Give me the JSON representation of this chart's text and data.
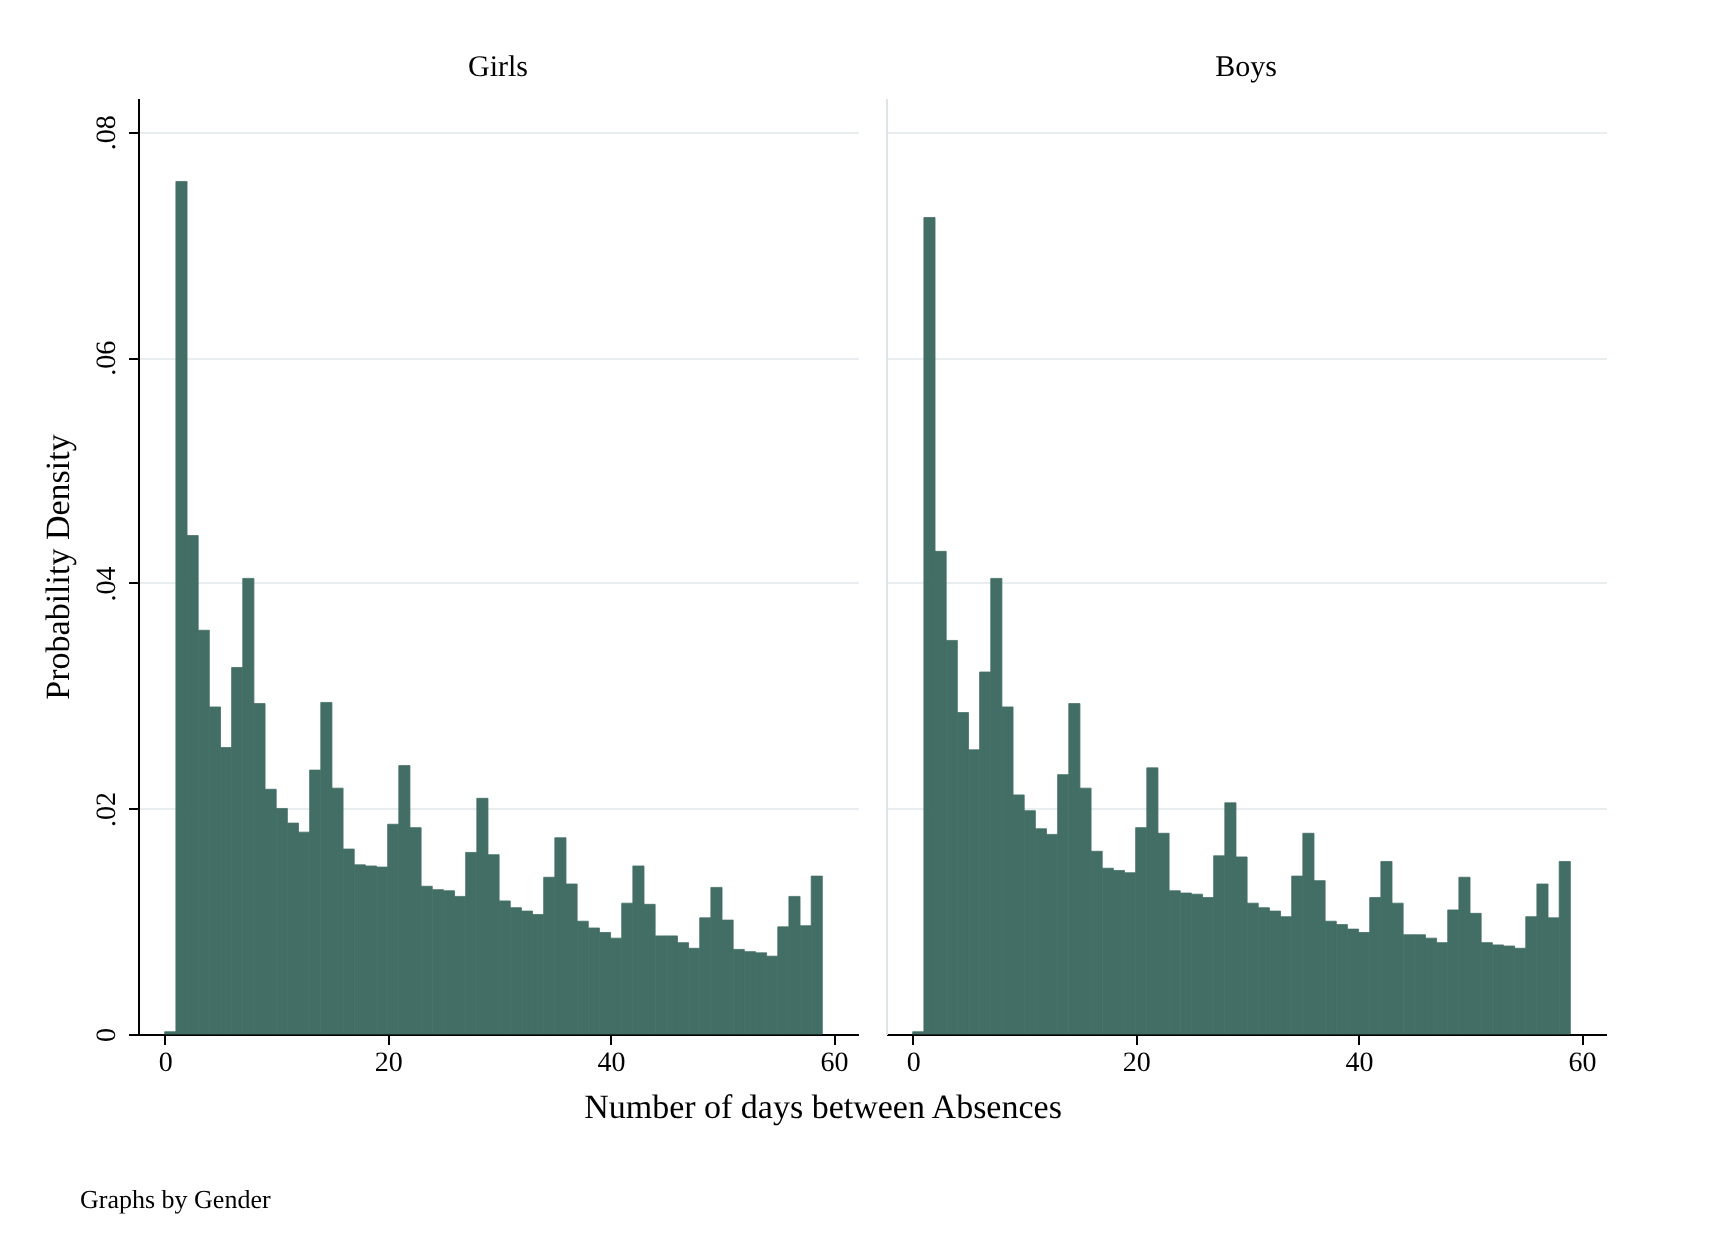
{
  "chart_data": [
    {
      "type": "histogram",
      "title": "Girls",
      "xlabel": "Number of days between Absences",
      "ylabel": "Probability Density",
      "annotations": [
        "Graphs by Gender"
      ],
      "color": "#426e66",
      "bins": [
        0,
        1,
        2,
        3,
        4,
        5,
        6,
        7,
        8,
        9,
        10,
        11,
        12,
        13,
        14,
        15,
        16,
        17,
        18,
        19,
        20,
        21,
        22,
        23,
        24,
        25,
        26,
        27,
        28,
        29,
        30,
        31,
        32,
        33,
        34,
        35,
        36,
        37,
        38,
        39,
        40,
        41,
        42,
        43,
        44,
        45,
        46,
        47,
        48,
        49,
        50,
        51,
        52,
        53,
        54,
        55,
        56,
        57,
        58,
        59
      ],
      "values": [
        0.0002,
        0.0756,
        0.0442,
        0.0358,
        0.029,
        0.0254,
        0.0325,
        0.0404,
        0.0293,
        0.0217,
        0.02,
        0.0187,
        0.0179,
        0.0234,
        0.0294,
        0.0218,
        0.0164,
        0.015,
        0.0149,
        0.0148,
        0.0186,
        0.0238,
        0.0183,
        0.0131,
        0.0128,
        0.0127,
        0.0122,
        0.0161,
        0.0209,
        0.0159,
        0.0118,
        0.0112,
        0.0109,
        0.0106,
        0.0139,
        0.0174,
        0.0133,
        0.01,
        0.0094,
        0.009,
        0.0085,
        0.0116,
        0.0149,
        0.0115,
        0.0087,
        0.0087,
        0.0081,
        0.0076,
        0.0103,
        0.013,
        0.0101,
        0.0075,
        0.0073,
        0.0072,
        0.0069,
        0.0095,
        0.0122,
        0.0096,
        0.014
      ],
      "xlim": [
        -2.4,
        62.2
      ],
      "xticks": [
        0,
        20,
        40,
        60
      ],
      "ylim": [
        0,
        0.083
      ],
      "yticks": [
        0,
        {
          "value": 0.02,
          "label": ".02"
        },
        {
          "value": 0.04,
          "label": ".04"
        },
        {
          "value": 0.06,
          "label": ".06"
        },
        {
          "value": 0.08,
          "label": ".08"
        }
      ],
      "grid": "y"
    },
    {
      "type": "histogram",
      "title": "Boys",
      "color": "#426e66",
      "bins": [
        0,
        1,
        2,
        3,
        4,
        5,
        6,
        7,
        8,
        9,
        10,
        11,
        12,
        13,
        14,
        15,
        16,
        17,
        18,
        19,
        20,
        21,
        22,
        23,
        24,
        25,
        26,
        27,
        28,
        29,
        30,
        31,
        32,
        33,
        34,
        35,
        36,
        37,
        38,
        39,
        40,
        41,
        42,
        43,
        44,
        45,
        46,
        47,
        48,
        49,
        50,
        51,
        52,
        53,
        54,
        55,
        56,
        57,
        58,
        59
      ],
      "values": [
        0.0002,
        0.0724,
        0.0428,
        0.0349,
        0.0285,
        0.0252,
        0.0321,
        0.0404,
        0.029,
        0.0212,
        0.0198,
        0.0182,
        0.0177,
        0.023,
        0.0293,
        0.0218,
        0.0162,
        0.0147,
        0.0145,
        0.0143,
        0.0183,
        0.0236,
        0.0178,
        0.0127,
        0.0125,
        0.0124,
        0.0121,
        0.0158,
        0.0205,
        0.0157,
        0.0116,
        0.0112,
        0.0109,
        0.0104,
        0.014,
        0.0178,
        0.0136,
        0.01,
        0.0097,
        0.0093,
        0.009,
        0.0121,
        0.0153,
        0.0116,
        0.0088,
        0.0088,
        0.0085,
        0.0081,
        0.011,
        0.0139,
        0.0107,
        0.0081,
        0.0079,
        0.0078,
        0.0076,
        0.0104,
        0.0133,
        0.0103,
        0.0153
      ],
      "xlim": [
        -2.4,
        62.2
      ],
      "xticks": [
        0,
        20,
        40,
        60
      ],
      "ylim": [
        0,
        0.083
      ],
      "yticks": [
        0,
        0.02,
        0.04,
        0.06,
        0.08
      ],
      "grid": "y",
      "tick_labels": "x"
    }
  ]
}
